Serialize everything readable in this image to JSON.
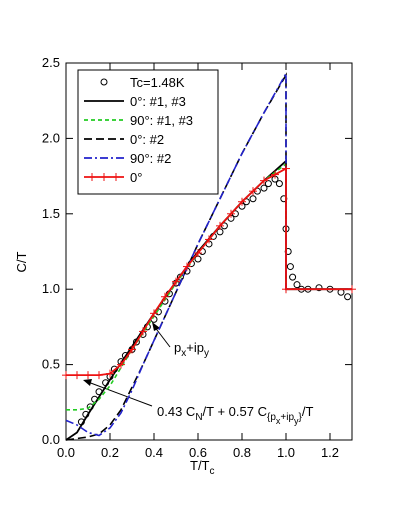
{
  "chart_data": {
    "type": "line",
    "xlabel": [
      {
        "text": "T/T"
      },
      {
        "text": "c",
        "level": 1
      }
    ],
    "ylabel": [
      {
        "text": "C/T"
      }
    ],
    "xlim": [
      0,
      1.3
    ],
    "ylim": [
      0,
      2.5
    ],
    "xticks": [
      {
        "value": 0,
        "label": "0.0"
      },
      {
        "value": 0.2,
        "label": "0.2"
      },
      {
        "value": 0.4,
        "label": "0.4"
      },
      {
        "value": 0.6,
        "label": "0.6"
      },
      {
        "value": 0.8,
        "label": "0.8"
      },
      {
        "value": 1,
        "label": "1.0"
      },
      {
        "value": 1.2,
        "label": "1.2"
      }
    ],
    "yticks": [
      {
        "value": 0,
        "label": "0.0"
      },
      {
        "value": 0.5,
        "label": "0.5"
      },
      {
        "value": 1,
        "label": "1.0"
      },
      {
        "value": 1.5,
        "label": "1.5"
      },
      {
        "value": 2,
        "label": "2.0"
      },
      {
        "value": 2.5,
        "label": "2.5"
      }
    ],
    "legend": "upper-left",
    "series": [
      {
        "name": "Tc=1.48K",
        "color": "#000000",
        "marker": "circle",
        "line": "none",
        "x": [
          0.07,
          0.09,
          0.11,
          0.13,
          0.15,
          0.18,
          0.2,
          0.22,
          0.25,
          0.27,
          0.3,
          0.32,
          0.35,
          0.37,
          0.4,
          0.42,
          0.45,
          0.47,
          0.5,
          0.52,
          0.55,
          0.57,
          0.6,
          0.62,
          0.65,
          0.67,
          0.7,
          0.72,
          0.75,
          0.77,
          0.8,
          0.82,
          0.85,
          0.87,
          0.9,
          0.92,
          0.95,
          0.97,
          0.99,
          1.0,
          1.01,
          1.02,
          1.03,
          1.05,
          1.07,
          1.1,
          1.15,
          1.2,
          1.25,
          1.28
        ],
        "values": [
          0.12,
          0.17,
          0.22,
          0.27,
          0.32,
          0.38,
          0.42,
          0.47,
          0.52,
          0.56,
          0.6,
          0.65,
          0.7,
          0.75,
          0.8,
          0.85,
          0.92,
          0.97,
          1.04,
          1.08,
          1.12,
          1.17,
          1.2,
          1.25,
          1.3,
          1.35,
          1.38,
          1.42,
          1.47,
          1.5,
          1.55,
          1.58,
          1.6,
          1.65,
          1.67,
          1.7,
          1.73,
          1.7,
          1.6,
          1.4,
          1.25,
          1.15,
          1.08,
          1.03,
          1.0,
          1.0,
          1.01,
          1.0,
          0.98,
          0.95
        ]
      },
      {
        "name": "0°: #1, #3",
        "color": "#000000",
        "line": "solid",
        "x": [
          0,
          0.05,
          0.1,
          0.2,
          0.3,
          0.4,
          0.5,
          0.6,
          0.7,
          0.8,
          0.9,
          1.0,
          1.0,
          1.3
        ],
        "values": [
          0,
          0.05,
          0.17,
          0.4,
          0.62,
          0.84,
          1.05,
          1.25,
          1.42,
          1.58,
          1.72,
          1.85,
          1.0,
          1.0
        ]
      },
      {
        "name": "90°: #1, #3",
        "color": "#22cc22",
        "line": "short-dash",
        "x": [
          0,
          0.05,
          0.1,
          0.15,
          0.2,
          0.3,
          0.4,
          0.5,
          0.6,
          0.7,
          0.8,
          0.9,
          1.0,
          1.0,
          1.3
        ],
        "values": [
          0.2,
          0.2,
          0.21,
          0.27,
          0.36,
          0.6,
          0.82,
          1.04,
          1.24,
          1.42,
          1.58,
          1.72,
          1.83,
          1.0,
          1.0
        ]
      },
      {
        "name": "0°: #2",
        "color": "#000000",
        "line": "dashed",
        "x": [
          0,
          0.1,
          0.15,
          0.2,
          0.25,
          0.3,
          0.35,
          0.4,
          0.5,
          0.6,
          0.7,
          0.8,
          0.9,
          1.0,
          1.0,
          1.3
        ],
        "values": [
          0,
          0.02,
          0.04,
          0.1,
          0.2,
          0.35,
          0.5,
          0.66,
          0.98,
          1.3,
          1.6,
          1.9,
          2.17,
          2.42,
          1.0,
          1.0
        ]
      },
      {
        "name": "90°: #2",
        "color": "#2222cc",
        "line": "dash-dot",
        "x": [
          0,
          0.05,
          0.1,
          0.15,
          0.2,
          0.25,
          0.3,
          0.35,
          0.4,
          0.5,
          0.6,
          0.7,
          0.8,
          0.9,
          1.0,
          1.0,
          1.3
        ],
        "values": [
          0.13,
          0.1,
          0.05,
          0.03,
          0.08,
          0.18,
          0.33,
          0.5,
          0.66,
          0.98,
          1.3,
          1.6,
          1.9,
          2.17,
          2.43,
          1.0,
          1.0
        ]
      },
      {
        "name": "0°",
        "color": "#ee1111",
        "line": "solid",
        "marker": "plus",
        "x": [
          0,
          0.05,
          0.1,
          0.15,
          0.2,
          0.25,
          0.3,
          0.35,
          0.4,
          0.45,
          0.5,
          0.55,
          0.6,
          0.65,
          0.7,
          0.75,
          0.8,
          0.85,
          0.9,
          0.95,
          1.0,
          1.0,
          1.3
        ],
        "values": [
          0.43,
          0.43,
          0.43,
          0.43,
          0.44,
          0.5,
          0.6,
          0.72,
          0.84,
          0.95,
          1.05,
          1.15,
          1.24,
          1.33,
          1.42,
          1.5,
          1.58,
          1.65,
          1.72,
          1.76,
          1.8,
          1.0,
          1.0
        ]
      }
    ],
    "annotations": [
      [
        {
          "text": "p"
        },
        {
          "text": "x",
          "level": 1
        },
        {
          "text": "+ip"
        },
        {
          "text": "y",
          "level": 1
        }
      ],
      [
        {
          "text": "0.43 C"
        },
        {
          "text": "N",
          "level": 1
        },
        {
          "text": "/T + 0.57 C"
        },
        {
          "text": "{p",
          "level": 1
        },
        {
          "text": "x",
          "level": 2
        },
        {
          "text": "+ip",
          "level": 1
        },
        {
          "text": "y",
          "level": 2
        },
        {
          "text": "}",
          "level": 1
        },
        {
          "text": "/T"
        }
      ]
    ]
  }
}
